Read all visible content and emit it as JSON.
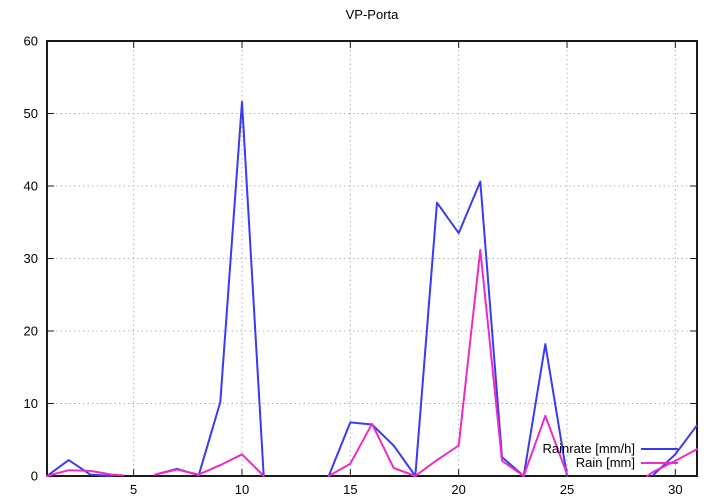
{
  "title": "VP-Porta",
  "colors": {
    "background": "#ffffff",
    "axis": "#1a1a1a",
    "grid": "#b0b0b0",
    "text": "#000000",
    "rainrate_line": "#3a3af2",
    "rain_line": "#ec2cc8"
  },
  "legend": {
    "entries": [
      {
        "label": "Rainrate [mm/h]"
      },
      {
        "label": "Rain [mm]"
      }
    ]
  },
  "chart_data": {
    "type": "line",
    "title": "VP-Porta",
    "xlabel": "",
    "ylabel": "",
    "xlim": [
      1,
      31
    ],
    "ylim": [
      0,
      60
    ],
    "xticks": [
      5,
      10,
      15,
      20,
      25,
      30
    ],
    "yticks": [
      0,
      10,
      20,
      30,
      40,
      50,
      60
    ],
    "grid": true,
    "grid_style": "dotted",
    "legend_position": "inside-bottom-right",
    "series": [
      {
        "name": "Rainrate [mm/h]",
        "color": "#3a3af2",
        "segments": [
          [
            [
              1,
              0
            ],
            [
              2,
              2.2
            ],
            [
              3,
              0.2
            ],
            [
              4,
              0
            ]
          ],
          [
            [
              6,
              0.2
            ],
            [
              7,
              1.0
            ],
            [
              8,
              0.1
            ],
            [
              9,
              10.2
            ],
            [
              10,
              51.6
            ],
            [
              11,
              0
            ]
          ],
          [
            [
              14,
              0
            ],
            [
              15,
              7.4
            ],
            [
              16,
              7.1
            ],
            [
              17,
              4.2
            ],
            [
              18,
              0
            ],
            [
              19,
              37.7
            ],
            [
              20,
              33.5
            ],
            [
              21,
              40.6
            ],
            [
              22,
              2.6
            ],
            [
              23,
              0
            ],
            [
              24,
              18.2
            ],
            [
              25,
              0
            ]
          ],
          [
            [
              29,
              0.2
            ],
            [
              30,
              3.0
            ],
            [
              31,
              7.0
            ]
          ]
        ]
      },
      {
        "name": "Rain [mm]",
        "color": "#ec2cc8",
        "segments": [
          [
            [
              1,
              0
            ],
            [
              2,
              0.8
            ],
            [
              3,
              0.7
            ],
            [
              4,
              0.2
            ],
            [
              4.5,
              0.1
            ]
          ],
          [
            [
              6,
              0.2
            ],
            [
              7,
              0.9
            ],
            [
              8,
              0.2
            ],
            [
              9,
              1.5
            ],
            [
              10,
              3.0
            ],
            [
              11,
              0
            ]
          ],
          [
            [
              14,
              0
            ],
            [
              15,
              1.7
            ],
            [
              16,
              7.2
            ],
            [
              17,
              1.1
            ],
            [
              18,
              0
            ],
            [
              19,
              2.2
            ],
            [
              20,
              4.2
            ],
            [
              21,
              31.2
            ],
            [
              22,
              2.1
            ],
            [
              23,
              0
            ],
            [
              24,
              8.3
            ],
            [
              25,
              0.3
            ]
          ],
          [
            [
              28.7,
              0
            ],
            [
              29,
              0.6
            ],
            [
              30,
              2.1
            ],
            [
              31,
              3.7
            ]
          ]
        ]
      }
    ]
  }
}
